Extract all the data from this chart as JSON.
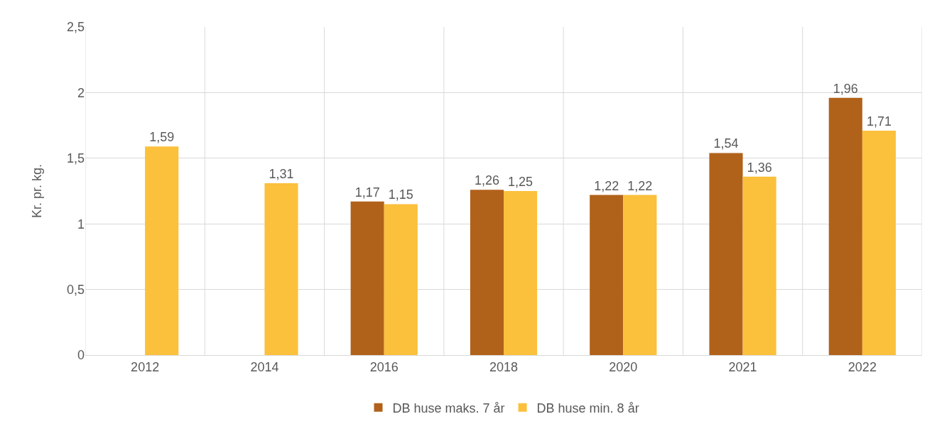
{
  "chart_data": {
    "type": "bar",
    "ylabel": "Kr. pr. kg.",
    "categories": [
      "2012",
      "2014",
      "2016",
      "2018",
      "2020",
      "2021",
      "2022"
    ],
    "series": [
      {
        "name": "DB huse maks. 7 år",
        "color": "#b1621a",
        "values": [
          null,
          null,
          1.17,
          1.26,
          1.22,
          1.54,
          1.96
        ],
        "value_labels": [
          null,
          null,
          "1,17",
          "1,26",
          "1,22",
          "1,54",
          "1,96"
        ]
      },
      {
        "name": "DB huse min. 8 år",
        "color": "#fbc03c",
        "values": [
          1.59,
          1.31,
          1.15,
          1.25,
          1.22,
          1.36,
          1.71
        ],
        "value_labels": [
          "1,59",
          "1,31",
          "1,15",
          "1,25",
          "1,22",
          "1,36",
          "1,71"
        ]
      }
    ],
    "ylim": [
      0,
      2.5
    ],
    "yticks": [
      0,
      {
        "value": 0.5,
        "label": "0,5"
      },
      1,
      {
        "value": 1.5,
        "label": "1,5"
      },
      2,
      {
        "value": 2.5,
        "label": "2,5"
      }
    ],
    "grid": true,
    "legend": "bottom"
  }
}
